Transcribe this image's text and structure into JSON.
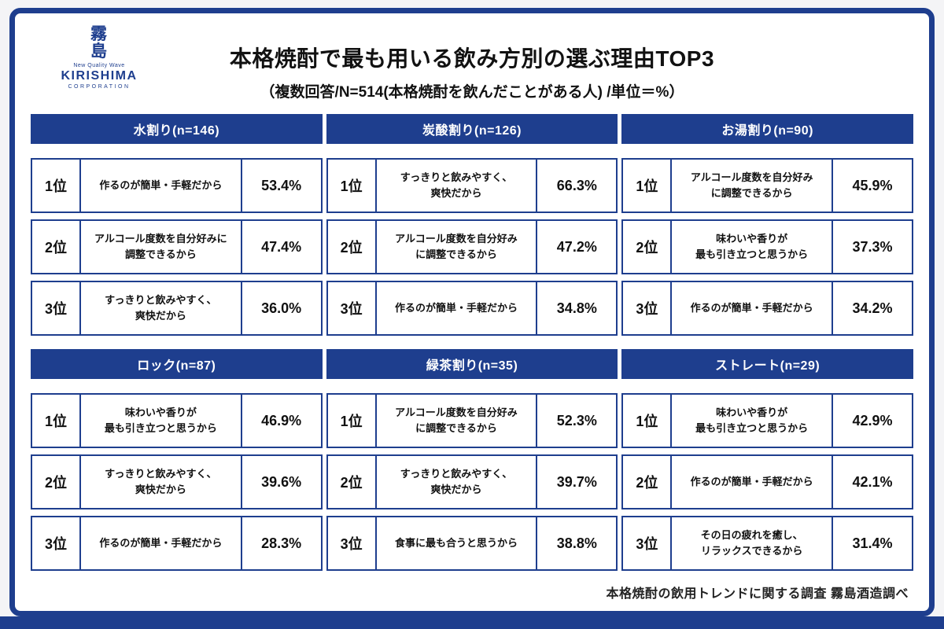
{
  "meta": {
    "accent_color": "#1e3e8e",
    "page_background": "#f4f4f6"
  },
  "logo": {
    "mark": "霧\n島",
    "tagline": "New Quality Wave",
    "brand": "KIRISHIMA",
    "brand_sub": "CORPORATION"
  },
  "header": {
    "title": "本格焼酎で最も用いる飲み方別の選ぶ理由TOP3",
    "subtitle": "（複数回答/N=514(本格焼酎を飲んだことがある人) /単位＝%）"
  },
  "footer": {
    "source": "本格焼酎の飲用トレンドに関する調査 霧島酒造調べ"
  },
  "chart_data": {
    "type": "table",
    "title": "本格焼酎で最も用いる飲み方別の選ぶ理由TOP3",
    "subtitle": "（複数回答/N=514(本格焼酎を飲んだことがある人) /単位＝%）",
    "n_total": 514,
    "unit": "%",
    "source": "本格焼酎の飲用トレンドに関する調査 霧島酒造調べ",
    "groups": [
      {
        "name": "水割り(n=146)",
        "n": 146,
        "rows": [
          {
            "rank": "1位",
            "reason": "作るのが簡単・手軽だから",
            "value": 53.4,
            "label": "53.4%"
          },
          {
            "rank": "2位",
            "reason": "アルコール度数を自分好みに\n調整できるから",
            "value": 47.4,
            "label": "47.4%"
          },
          {
            "rank": "3位",
            "reason": "すっきりと飲みやすく、\n爽快だから",
            "value": 36.0,
            "label": "36.0%"
          }
        ]
      },
      {
        "name": "炭酸割り(n=126)",
        "n": 126,
        "rows": [
          {
            "rank": "1位",
            "reason": "すっきりと飲みやすく、\n爽快だから",
            "value": 66.3,
            "label": "66.3%"
          },
          {
            "rank": "2位",
            "reason": "アルコール度数を自分好み\nに調整できるから",
            "value": 47.2,
            "label": "47.2%"
          },
          {
            "rank": "3位",
            "reason": "作るのが簡単・手軽だから",
            "value": 34.8,
            "label": "34.8%"
          }
        ]
      },
      {
        "name": "お湯割り(n=90)",
        "n": 90,
        "rows": [
          {
            "rank": "1位",
            "reason": "アルコール度数を自分好み\nに調整できるから",
            "value": 45.9,
            "label": "45.9%"
          },
          {
            "rank": "2位",
            "reason": "味わいや香りが\n最も引き立つと思うから",
            "value": 37.3,
            "label": "37.3%"
          },
          {
            "rank": "3位",
            "reason": "作るのが簡単・手軽だから",
            "value": 34.2,
            "label": "34.2%"
          }
        ]
      },
      {
        "name": "ロック(n=87)",
        "n": 87,
        "rows": [
          {
            "rank": "1位",
            "reason": "味わいや香りが\n最も引き立つと思うから",
            "value": 46.9,
            "label": "46.9%"
          },
          {
            "rank": "2位",
            "reason": "すっきりと飲みやすく、\n爽快だから",
            "value": 39.6,
            "label": "39.6%"
          },
          {
            "rank": "3位",
            "reason": "作るのが簡単・手軽だから",
            "value": 28.3,
            "label": "28.3%"
          }
        ]
      },
      {
        "name": "緑茶割り(n=35)",
        "n": 35,
        "rows": [
          {
            "rank": "1位",
            "reason": "アルコール度数を自分好み\nに調整できるから",
            "value": 52.3,
            "label": "52.3%"
          },
          {
            "rank": "2位",
            "reason": "すっきりと飲みやすく、\n爽快だから",
            "value": 39.7,
            "label": "39.7%"
          },
          {
            "rank": "3位",
            "reason": "食事に最も合うと思うから",
            "value": 38.8,
            "label": "38.8%"
          }
        ]
      },
      {
        "name": "ストレート(n=29)",
        "n": 29,
        "rows": [
          {
            "rank": "1位",
            "reason": "味わいや香りが\n最も引き立つと思うから",
            "value": 42.9,
            "label": "42.9%"
          },
          {
            "rank": "2位",
            "reason": "作るのが簡単・手軽だから",
            "value": 42.1,
            "label": "42.1%"
          },
          {
            "rank": "3位",
            "reason": "その日の疲れを癒し、\nリラックスできるから",
            "value": 31.4,
            "label": "31.4%"
          }
        ]
      }
    ]
  }
}
